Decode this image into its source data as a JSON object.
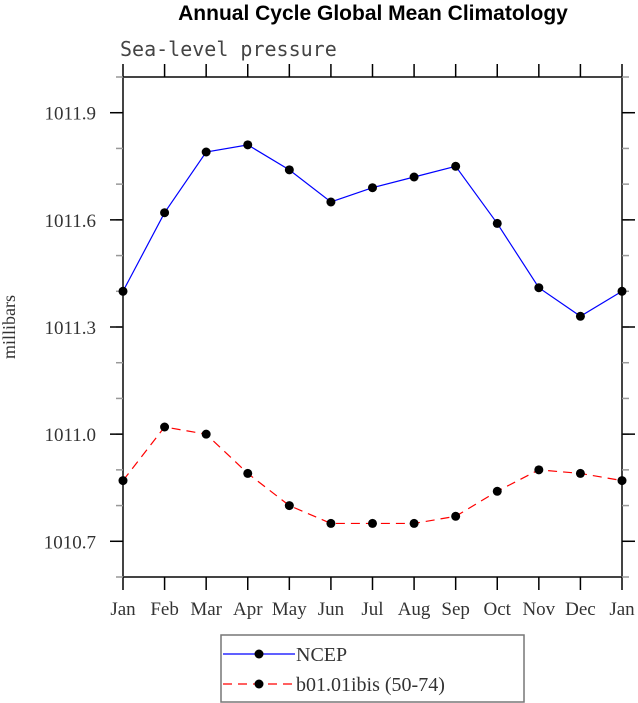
{
  "chart_data": {
    "type": "line",
    "title": "Annual Cycle Global Mean Climatology",
    "subtitle": "Sea-level pressure",
    "xlabel": "",
    "ylabel": "millibars",
    "categories": [
      "Jan",
      "Feb",
      "Mar",
      "Apr",
      "May",
      "Jun",
      "Jul",
      "Aug",
      "Sep",
      "Oct",
      "Nov",
      "Dec",
      "Jan"
    ],
    "ylim": [
      1010.6,
      1012.0
    ],
    "yticks": [
      "1010.7",
      "1011.0",
      "1011.3",
      "1011.6",
      "1011.9"
    ],
    "grid": false,
    "legend_position": "bottom",
    "series": [
      {
        "name": "NCEP",
        "color": "#0000ff",
        "dash": "solid",
        "values": [
          1011.4,
          1011.62,
          1011.79,
          1011.81,
          1011.74,
          1011.65,
          1011.69,
          1011.72,
          1011.75,
          1011.59,
          1011.41,
          1011.33,
          1011.4
        ]
      },
      {
        "name": "b01.01ibis (50-74)",
        "color": "#ff0000",
        "dash": "dashed",
        "values": [
          1010.87,
          1011.02,
          1011.0,
          1010.89,
          1010.8,
          1010.75,
          1010.75,
          1010.75,
          1010.77,
          1010.84,
          1010.9,
          1010.89,
          1010.87
        ]
      }
    ]
  }
}
